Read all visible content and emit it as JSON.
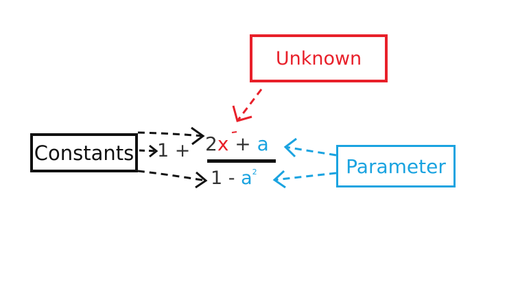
{
  "labels": {
    "unknown": "Unknown",
    "constants": "Constants",
    "parameter": "Parameter"
  },
  "expression": {
    "whole_part": "1 +",
    "numerator_coefficient": "2",
    "numerator_variable": "x",
    "numerator_operator": " + ",
    "numerator_parameter": "a",
    "denominator_constant": "1 - ",
    "denominator_parameter": "a",
    "denominator_exponent": "2"
  },
  "colors": {
    "unknown": "#e8202a",
    "constants": "#111111",
    "parameter": "#1aa3e0",
    "expression_text": "#333333"
  }
}
